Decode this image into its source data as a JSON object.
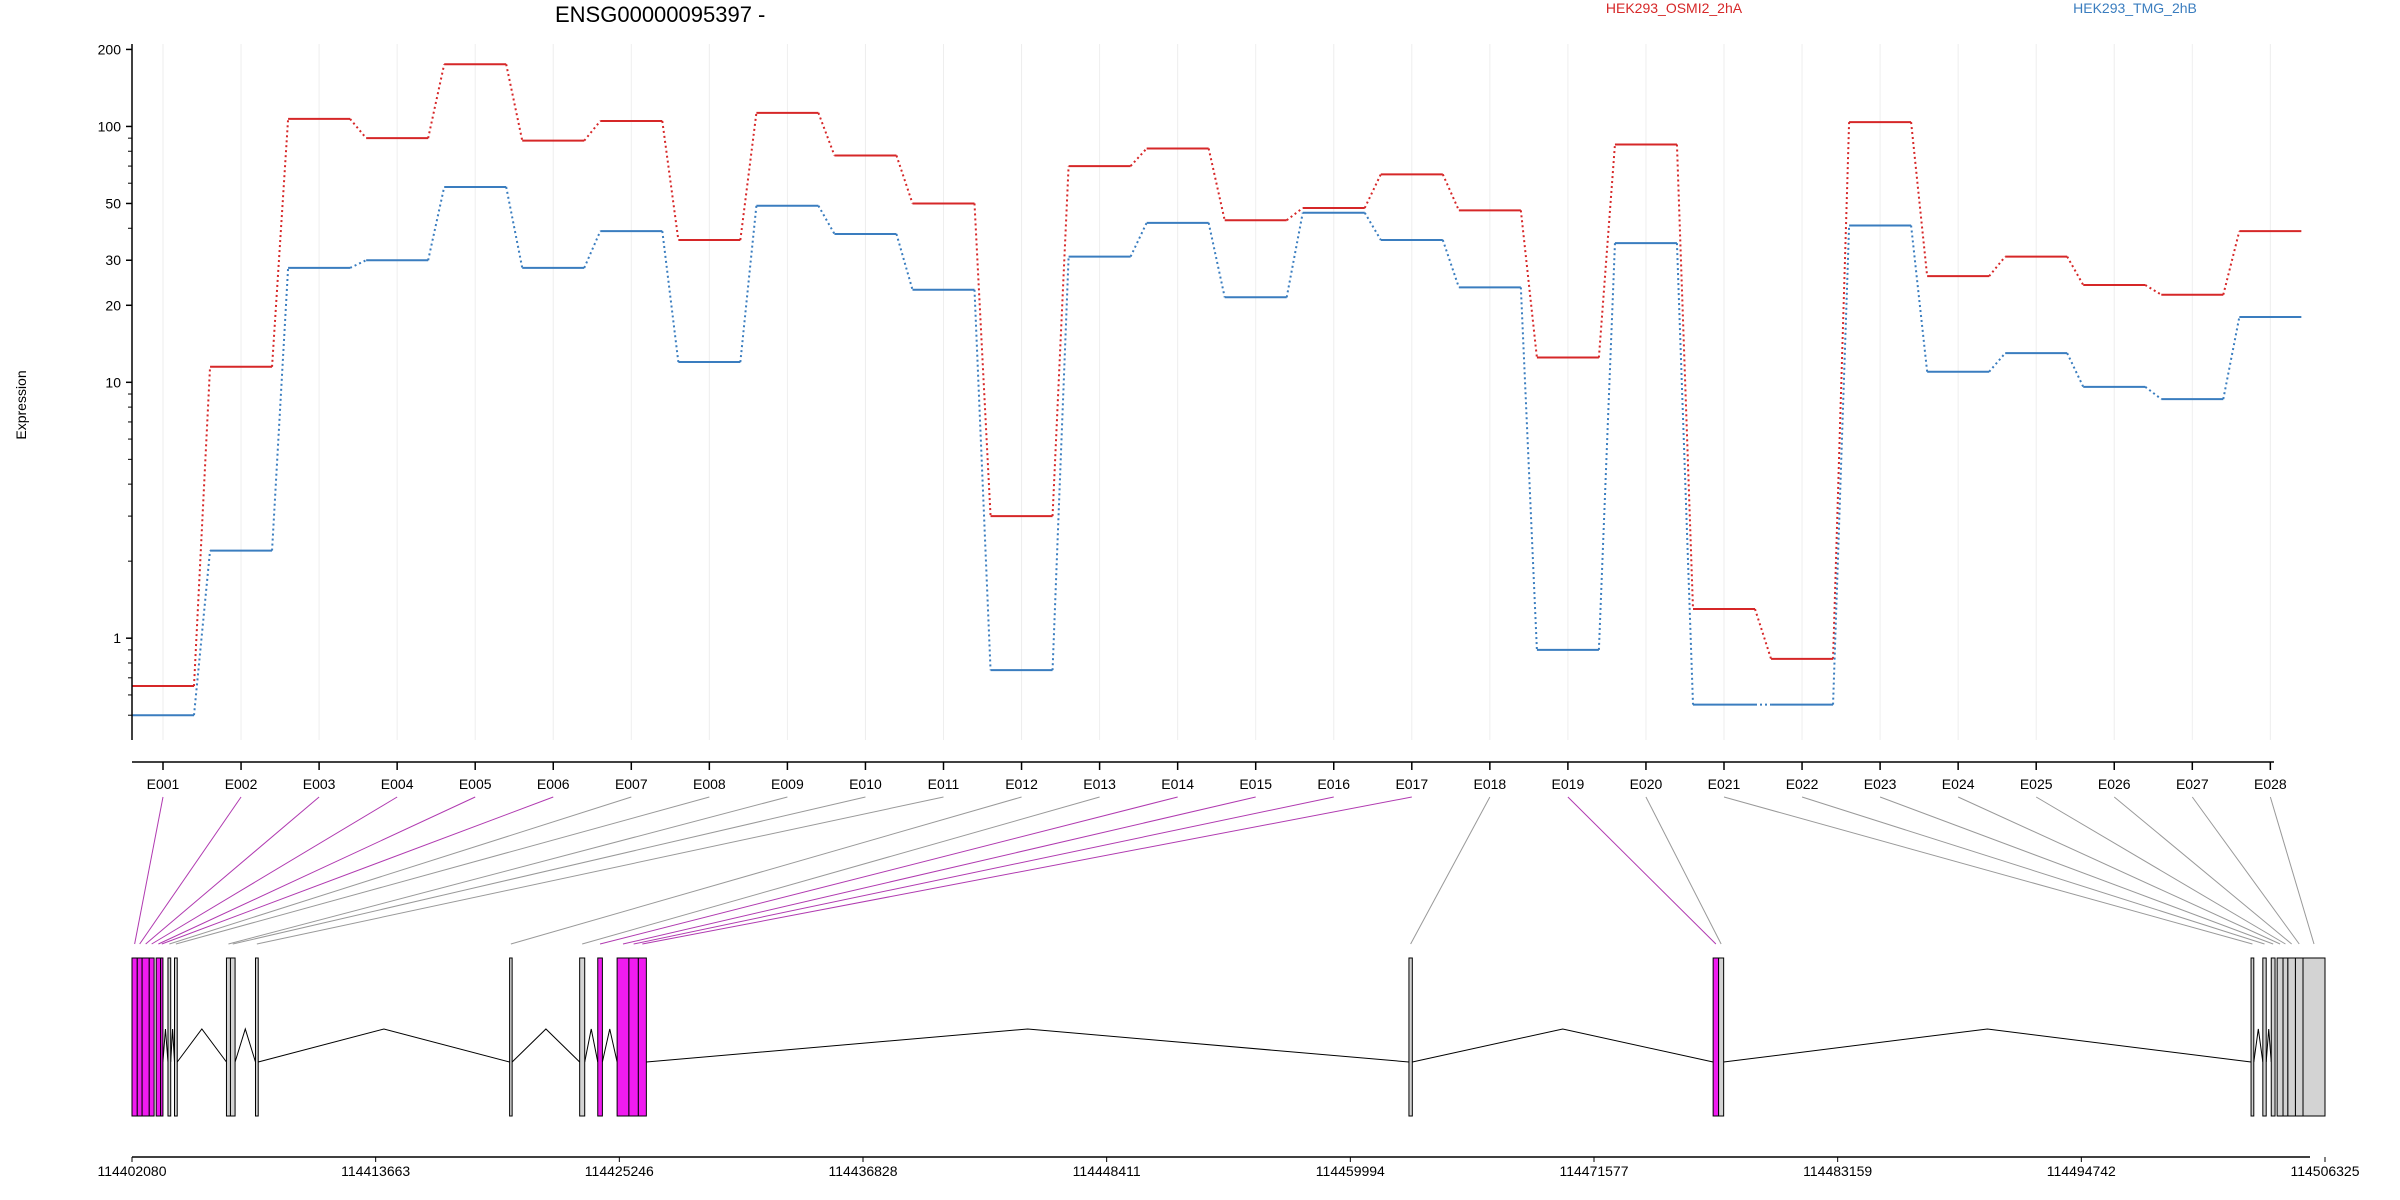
{
  "chart_data": {
    "type": "line",
    "title": "ENSG00000095397 -",
    "ylabel": "Expression",
    "yscale": "log",
    "ylim": [
      0.4,
      210
    ],
    "yticks": [
      1,
      10,
      20,
      30,
      50,
      100,
      200
    ],
    "ytick_labels": [
      "1",
      "10",
      "20",
      "30",
      "50",
      "100",
      "200"
    ],
    "categories": [
      "E001",
      "E002",
      "E003",
      "E004",
      "E005",
      "E006",
      "E007",
      "E008",
      "E009",
      "E010",
      "E011",
      "E012",
      "E013",
      "E014",
      "E015",
      "E016",
      "E017",
      "E018",
      "E019",
      "E020",
      "E021",
      "E022",
      "E023",
      "E024",
      "E025",
      "E026",
      "E027",
      "E028"
    ],
    "series": [
      {
        "name": "HEK293_OSMI2_2hA",
        "color": "#d62728",
        "values": [
          0.65,
          11.5,
          107,
          90,
          175,
          88,
          105,
          36,
          113,
          77,
          50,
          3.0,
          70,
          82,
          43,
          48,
          65,
          47,
          12.5,
          85,
          1.3,
          0.83,
          104,
          26,
          31,
          24,
          22,
          39
        ]
      },
      {
        "name": "HEK293_TMG_2hB",
        "color": "#3a7dbf",
        "values": [
          0.5,
          2.2,
          28,
          30,
          58,
          28,
          39,
          12,
          49,
          38,
          23,
          0.75,
          31,
          42,
          21.5,
          46,
          36,
          23.5,
          0.9,
          35,
          0.55,
          0.55,
          41,
          11,
          13,
          9.6,
          8.6,
          18
        ]
      }
    ],
    "genomic_axis": {
      "tick_labels": [
        "114402080",
        "114413663",
        "114425246",
        "114436828",
        "114448411",
        "114459994",
        "114471577",
        "114483159",
        "114494742",
        "114506325"
      ],
      "min": 114402080,
      "max": 114506325
    },
    "exons": [
      {
        "id": "E001",
        "start": 114402080,
        "end": 114402330,
        "highlight": "pink"
      },
      {
        "id": "E002",
        "start": 114402330,
        "end": 114402560,
        "highlight": "pink"
      },
      {
        "id": "E003",
        "start": 114402560,
        "end": 114402900,
        "highlight": "pink"
      },
      {
        "id": "E004",
        "start": 114402900,
        "end": 114403130,
        "highlight": "pink"
      },
      {
        "id": "E005",
        "start": 114403230,
        "end": 114403440,
        "highlight": "pink"
      },
      {
        "id": "E006",
        "start": 114403440,
        "end": 114403550,
        "highlight": "pink"
      },
      {
        "id": "E007",
        "start": 114403790,
        "end": 114403920,
        "highlight": "none"
      },
      {
        "id": "E008",
        "start": 114404100,
        "end": 114404230,
        "highlight": "none"
      },
      {
        "id": "E009",
        "start": 114406570,
        "end": 114406760,
        "highlight": "none"
      },
      {
        "id": "E010",
        "start": 114406760,
        "end": 114406980,
        "highlight": "none"
      },
      {
        "id": "E011",
        "start": 114407950,
        "end": 114408080,
        "highlight": "none"
      },
      {
        "id": "E012",
        "start": 114420030,
        "end": 114420150,
        "highlight": "none"
      },
      {
        "id": "E013",
        "start": 114423360,
        "end": 114423600,
        "highlight": "none"
      },
      {
        "id": "E014",
        "start": 114424220,
        "end": 114424440,
        "highlight": "pink"
      },
      {
        "id": "E015",
        "start": 114425140,
        "end": 114425700,
        "highlight": "pink"
      },
      {
        "id": "E016",
        "start": 114425700,
        "end": 114426150,
        "highlight": "pink"
      },
      {
        "id": "E017",
        "start": 114426150,
        "end": 114426530,
        "highlight": "pink"
      },
      {
        "id": "E018",
        "start": 114462780,
        "end": 114462940,
        "highlight": "none"
      },
      {
        "id": "E019",
        "start": 114477240,
        "end": 114477500,
        "highlight": "pink"
      },
      {
        "id": "E020",
        "start": 114477500,
        "end": 114477740,
        "highlight": "none"
      },
      {
        "id": "E021",
        "start": 114502810,
        "end": 114502940,
        "highlight": "none"
      },
      {
        "id": "E022",
        "start": 114503370,
        "end": 114503530,
        "highlight": "none"
      },
      {
        "id": "E023",
        "start": 114503770,
        "end": 114503950,
        "highlight": "none"
      },
      {
        "id": "E024",
        "start": 114504050,
        "end": 114504330,
        "highlight": "none"
      },
      {
        "id": "E025",
        "start": 114504330,
        "end": 114504560,
        "highlight": "none"
      },
      {
        "id": "E026",
        "start": 114504560,
        "end": 114504920,
        "highlight": "none"
      },
      {
        "id": "E027",
        "start": 114504920,
        "end": 114505280,
        "highlight": "none"
      },
      {
        "id": "E028",
        "start": 114505280,
        "end": 114506325,
        "highlight": "none"
      }
    ],
    "exon_colors": {
      "pink": "#f01bf0",
      "none": "#d3d3d3"
    },
    "grid": "vertical",
    "legend": "top-right"
  }
}
